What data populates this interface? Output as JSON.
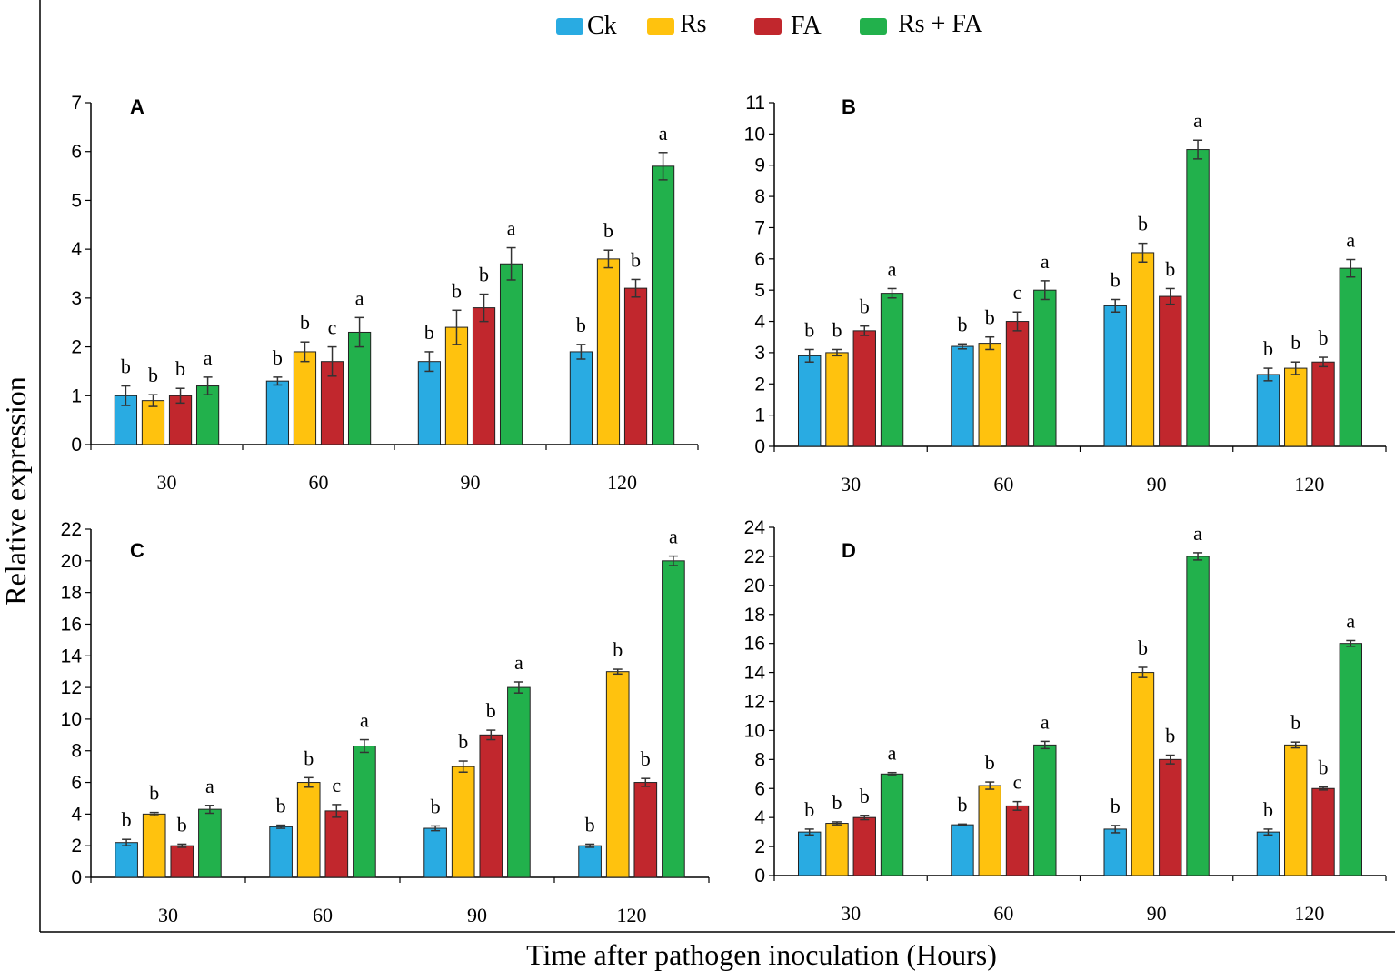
{
  "figure": {
    "ylabel": "Relative expression",
    "xlabel": "Time after pathogen inoculation (Hours)"
  },
  "legend": [
    {
      "name": "Ck",
      "color": "#29ABE2"
    },
    {
      "name": "Rs",
      "color": "#FFC20E"
    },
    {
      "name": "FA",
      "color": "#C1272D"
    },
    {
      "name": "Rs + FA",
      "color": "#22B14C"
    }
  ],
  "chart_data": [
    {
      "type": "bar",
      "title": "A",
      "categories": [
        "30",
        "60",
        "90",
        "120"
      ],
      "ylim": [
        0,
        7
      ],
      "yticks": [
        0,
        1,
        2,
        3,
        4,
        5,
        6,
        7
      ],
      "series": [
        {
          "name": "Ck",
          "values": [
            1.0,
            1.3,
            1.7,
            1.9
          ],
          "errors": [
            0.2,
            0.08,
            0.2,
            0.15
          ],
          "labels": [
            "b",
            "b",
            "b",
            "b"
          ]
        },
        {
          "name": "Rs",
          "values": [
            0.9,
            1.9,
            2.4,
            3.8
          ],
          "errors": [
            0.12,
            0.2,
            0.35,
            0.18
          ],
          "labels": [
            "b",
            "b",
            "b",
            "b"
          ]
        },
        {
          "name": "FA",
          "values": [
            1.0,
            1.7,
            2.8,
            3.2
          ],
          "errors": [
            0.15,
            0.3,
            0.28,
            0.18
          ],
          "labels": [
            "b",
            "c",
            "b",
            "b"
          ]
        },
        {
          "name": "Rs + FA",
          "values": [
            1.2,
            2.3,
            3.7,
            5.7
          ],
          "errors": [
            0.18,
            0.3,
            0.33,
            0.28
          ],
          "labels": [
            "a",
            "a",
            "a",
            "a"
          ]
        }
      ]
    },
    {
      "type": "bar",
      "title": "B",
      "categories": [
        "30",
        "60",
        "90",
        "120"
      ],
      "ylim": [
        0,
        11
      ],
      "yticks": [
        0,
        1,
        2,
        3,
        4,
        5,
        6,
        7,
        8,
        9,
        10,
        11
      ],
      "series": [
        {
          "name": "Ck",
          "values": [
            2.9,
            3.2,
            4.5,
            2.3
          ],
          "errors": [
            0.2,
            0.08,
            0.2,
            0.2
          ],
          "labels": [
            "b",
            "b",
            "b",
            "b"
          ]
        },
        {
          "name": "Rs",
          "values": [
            3.0,
            3.3,
            6.2,
            2.5
          ],
          "errors": [
            0.1,
            0.2,
            0.3,
            0.2
          ],
          "labels": [
            "b",
            "b",
            "b",
            "b"
          ]
        },
        {
          "name": "FA",
          "values": [
            3.7,
            4.0,
            4.8,
            2.7
          ],
          "errors": [
            0.15,
            0.3,
            0.25,
            0.15
          ],
          "labels": [
            "b",
            "c",
            "b",
            "b"
          ]
        },
        {
          "name": "Rs + FA",
          "values": [
            4.9,
            5.0,
            9.5,
            5.7
          ],
          "errors": [
            0.15,
            0.3,
            0.3,
            0.28
          ],
          "labels": [
            "a",
            "a",
            "a",
            "a"
          ]
        }
      ]
    },
    {
      "type": "bar",
      "title": "C",
      "categories": [
        "30",
        "60",
        "90",
        "120"
      ],
      "ylim": [
        0,
        22
      ],
      "yticks": [
        0,
        2,
        4,
        6,
        8,
        10,
        12,
        14,
        16,
        18,
        20,
        22
      ],
      "series": [
        {
          "name": "Ck",
          "values": [
            2.2,
            3.2,
            3.1,
            2.0
          ],
          "errors": [
            0.2,
            0.1,
            0.15,
            0.1
          ],
          "labels": [
            "b",
            "b",
            "b",
            "b"
          ]
        },
        {
          "name": "Rs",
          "values": [
            4.0,
            6.0,
            7.0,
            13.0
          ],
          "errors": [
            0.1,
            0.3,
            0.35,
            0.15
          ],
          "labels": [
            "b",
            "b",
            "b",
            "b"
          ]
        },
        {
          "name": "FA",
          "values": [
            2.0,
            4.2,
            9.0,
            6.0
          ],
          "errors": [
            0.1,
            0.4,
            0.3,
            0.25
          ],
          "labels": [
            "b",
            "c",
            "b",
            "b"
          ]
        },
        {
          "name": "Rs + FA",
          "values": [
            4.3,
            8.3,
            12.0,
            20.0
          ],
          "errors": [
            0.25,
            0.4,
            0.35,
            0.3
          ],
          "labels": [
            "a",
            "a",
            "a",
            "a"
          ]
        }
      ]
    },
    {
      "type": "bar",
      "title": "D",
      "categories": [
        "30",
        "60",
        "90",
        "120"
      ],
      "ylim": [
        0,
        24
      ],
      "yticks": [
        0,
        2,
        4,
        6,
        8,
        10,
        12,
        14,
        16,
        18,
        20,
        22,
        24
      ],
      "series": [
        {
          "name": "Ck",
          "values": [
            3.0,
            3.5,
            3.2,
            3.0
          ],
          "errors": [
            0.2,
            0.05,
            0.25,
            0.2
          ],
          "labels": [
            "b",
            "b",
            "b",
            "b"
          ]
        },
        {
          "name": "Rs",
          "values": [
            3.6,
            6.2,
            14.0,
            9.0
          ],
          "errors": [
            0.1,
            0.25,
            0.35,
            0.2
          ],
          "labels": [
            "b",
            "b",
            "b",
            "b"
          ]
        },
        {
          "name": "FA",
          "values": [
            4.0,
            4.8,
            8.0,
            6.0
          ],
          "errors": [
            0.15,
            0.3,
            0.3,
            0.1
          ],
          "labels": [
            "b",
            "c",
            "b",
            "b"
          ]
        },
        {
          "name": "Rs + FA",
          "values": [
            7.0,
            9.0,
            22.0,
            16.0
          ],
          "errors": [
            0.1,
            0.25,
            0.25,
            0.2
          ],
          "labels": [
            "a",
            "a",
            "a",
            "a"
          ]
        }
      ]
    }
  ]
}
